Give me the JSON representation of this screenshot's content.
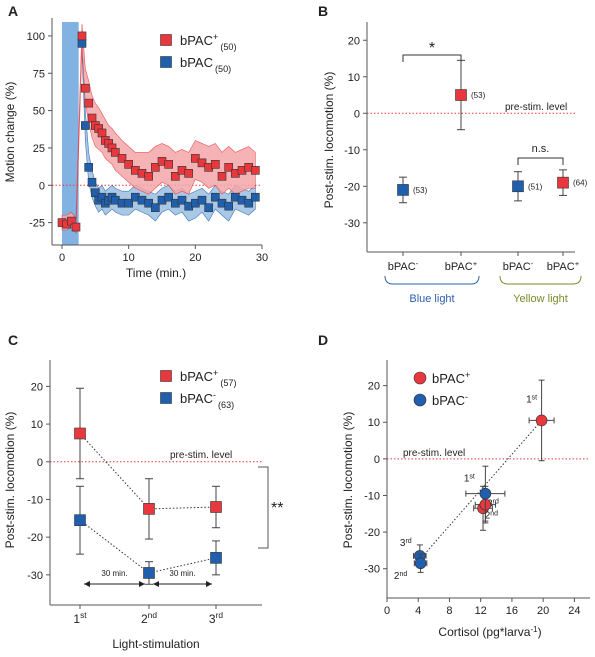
{
  "colors": {
    "red": "#e8383d",
    "red_fill": "#f4a6a9",
    "blue": "#1f5fae",
    "blue_fill": "#9bbfe2",
    "stim_blue": "#7aaee0",
    "dotted": "#e8383d"
  },
  "chart_data": [
    {
      "id": "A",
      "panel_label": "A",
      "type": "line",
      "xlabel": "Time (min.)",
      "ylabel": "Motion change (%)",
      "xlim": [
        -1.5,
        30
      ],
      "ylim": [
        -40,
        112
      ],
      "xticks": [
        0,
        10,
        20,
        30
      ],
      "yticks": [
        -25,
        0,
        25,
        50,
        75,
        100
      ],
      "stim_band": [
        0,
        2.5
      ],
      "legend": [
        {
          "label_main": "bPAC",
          "sup": "+",
          "n": "(50)"
        },
        {
          "label_main": "bPAC",
          "sup": "",
          "n": "(50)"
        }
      ],
      "series": [
        {
          "name": "bPAC+",
          "x": [
            0,
            0.7,
            1.4,
            2.1,
            3.0,
            3.5,
            4.0,
            4.5,
            5.0,
            5.5,
            6.0,
            6.5,
            7.0,
            7.5,
            8.0,
            9.0,
            10.0,
            11.0,
            12.0,
            13.0,
            14.0,
            15.0,
            16.0,
            17.0,
            18.0,
            19.0,
            20.0,
            21.0,
            22.0,
            23.0,
            24.0,
            25.0,
            26.0,
            27.0,
            28.0,
            29.0
          ],
          "values": [
            -25,
            -26,
            -24,
            -28,
            100,
            65,
            55,
            45,
            40,
            38,
            35,
            30,
            28,
            25,
            22,
            18,
            14,
            10,
            8,
            6,
            12,
            16,
            14,
            6,
            10,
            8,
            18,
            15,
            12,
            14,
            6,
            12,
            8,
            10,
            12,
            10
          ],
          "band_upper": [
            -20,
            -20,
            -18,
            -22,
            108,
            78,
            70,
            60,
            55,
            52,
            48,
            44,
            40,
            38,
            35,
            30,
            26,
            22,
            22,
            22,
            26,
            28,
            26,
            22,
            24,
            22,
            30,
            28,
            26,
            28,
            22,
            26,
            22,
            24,
            26,
            22
          ],
          "band_lower": [
            -30,
            -30,
            -28,
            -32,
            92,
            55,
            42,
            32,
            26,
            24,
            22,
            18,
            16,
            14,
            10,
            6,
            2,
            -2,
            -4,
            -6,
            -2,
            2,
            0,
            -6,
            -4,
            -6,
            4,
            2,
            -2,
            0,
            -6,
            -2,
            -6,
            -4,
            -2,
            -2
          ]
        },
        {
          "name": "bPAC-",
          "x": [
            3.0,
            3.5,
            4.0,
            4.5,
            5.0,
            5.5,
            6.0,
            6.5,
            7.0,
            7.5,
            8.0,
            9.0,
            10.0,
            11.0,
            12.0,
            13.0,
            14.0,
            15.0,
            16.0,
            17.0,
            18.0,
            19.0,
            20.0,
            21.0,
            22.0,
            23.0,
            24.0,
            25.0,
            26.0,
            27.0,
            28.0,
            29.0
          ],
          "values": [
            95,
            40,
            12,
            2,
            -5,
            -10,
            -8,
            -12,
            -10,
            -8,
            -10,
            -12,
            -12,
            -8,
            -10,
            -12,
            -15,
            -10,
            -8,
            -12,
            -10,
            -14,
            -12,
            -10,
            -15,
            -8,
            -12,
            -14,
            -8,
            -10,
            -12,
            -8
          ],
          "band_upper": [
            102,
            50,
            22,
            10,
            2,
            -2,
            0,
            -4,
            -2,
            0,
            -2,
            -4,
            -4,
            0,
            -2,
            -4,
            -6,
            -2,
            0,
            -4,
            -2,
            -6,
            -4,
            -2,
            -6,
            0,
            -4,
            -6,
            0,
            -2,
            -4,
            0
          ],
          "band_lower": [
            88,
            30,
            2,
            -8,
            -14,
            -18,
            -16,
            -20,
            -18,
            -16,
            -18,
            -20,
            -20,
            -16,
            -18,
            -20,
            -24,
            -18,
            -16,
            -20,
            -18,
            -24,
            -22,
            -18,
            -24,
            -16,
            -20,
            -24,
            -16,
            -18,
            -20,
            -16
          ]
        }
      ]
    },
    {
      "id": "B",
      "panel_label": "B",
      "type": "scatter",
      "ylabel": "Post-stim. locomotion (%)",
      "ylim": [
        -38,
        25
      ],
      "yticks": [
        -30,
        -20,
        -10,
        0,
        10,
        20
      ],
      "reference_label": "pre-stim. level",
      "points": [
        {
          "group": "Blue light",
          "name": "bPAC-",
          "value": -21,
          "err": 3.5,
          "n": "(53)",
          "color": "blue"
        },
        {
          "group": "Blue light",
          "name": "bPAC+",
          "value": 5,
          "err": 9.5,
          "n": "(53)",
          "color": "red"
        },
        {
          "group": "Yellow light",
          "name": "bPAC-",
          "value": -20,
          "err": 4,
          "n": "(51)",
          "color": "blue"
        },
        {
          "group": "Yellow light",
          "name": "bPAC+",
          "value": -19,
          "err": 3.5,
          "n": "(64)",
          "color": "red"
        }
      ],
      "tick_labels": [
        {
          "main": "bPAC",
          "sup": "-"
        },
        {
          "main": "bPAC",
          "sup": "+"
        },
        {
          "main": "bPAC",
          "sup": "-"
        },
        {
          "main": "bPAC",
          "sup": "+"
        }
      ],
      "groups": [
        {
          "label": "Blue light",
          "color": "#2e5fae"
        },
        {
          "label": "Yellow light",
          "color": "#7c8a2a"
        }
      ],
      "annotations": {
        "sig_blue": "*",
        "sig_yellow": "n.s."
      }
    },
    {
      "id": "C",
      "panel_label": "C",
      "type": "line",
      "xlabel": "Light-stimulation",
      "ylabel": "Post-stim. locomotion (%)",
      "ylim": [
        -38,
        27
      ],
      "yticks": [
        -30,
        -20,
        -10,
        0,
        10,
        20
      ],
      "categories": [
        {
          "main": "1",
          "sup": "st"
        },
        {
          "main": "2",
          "sup": "nd"
        },
        {
          "main": "3",
          "sup": "rd"
        }
      ],
      "reference_label": "pre-stim. level",
      "interval_label": "30 min.",
      "legend": [
        {
          "label_main": "bPAC",
          "sup": "+",
          "n": "(57)"
        },
        {
          "label_main": "bPAC",
          "sup": "-",
          "n": "(63)"
        }
      ],
      "series": [
        {
          "name": "bPAC+",
          "values": [
            7.5,
            -12.5,
            -12
          ],
          "err": [
            12,
            8,
            5.5
          ],
          "color": "red"
        },
        {
          "name": "bPAC-",
          "values": [
            -15.5,
            -29.5,
            -25.5
          ],
          "err": [
            9,
            3,
            4.5
          ],
          "color": "blue"
        }
      ],
      "significance": "**"
    },
    {
      "id": "D",
      "panel_label": "D",
      "type": "scatter",
      "xlabel": "Cortisol (pg*larva",
      "xlabel_sup": "-1",
      "xlabel_end": ")",
      "ylabel": "Post-stim. locomotion (%)",
      "xlim": [
        0,
        26
      ],
      "ylim": [
        -38,
        27
      ],
      "xticks": [
        0,
        4,
        8,
        12,
        16,
        20,
        24
      ],
      "yticks": [
        -30,
        -20,
        -10,
        0,
        10,
        20
      ],
      "reference_label": "pre-stim. level",
      "legend": [
        {
          "label_main": "bPAC",
          "sup": "+"
        },
        {
          "label_main": "bPAC",
          "sup": "-"
        }
      ],
      "points": [
        {
          "name": "bPAC+",
          "x": 19.8,
          "y": 10.5,
          "xerr": 1.6,
          "yerr": 11,
          "label_main": "1",
          "label_sup": "st",
          "color": "red"
        },
        {
          "name": "bPAC+",
          "x": 12.3,
          "y": -13.5,
          "xerr": 1.2,
          "yerr": 6,
          "label_main": "3",
          "label_sup": "rd",
          "color": "red"
        },
        {
          "name": "bPAC+",
          "x": 12.6,
          "y": -12.5,
          "xerr": 1.3,
          "yerr": 5,
          "label_main": "2",
          "label_sup": "nd",
          "color": "red"
        },
        {
          "name": "bPAC-",
          "x": 12.6,
          "y": -9.5,
          "xerr": 2.5,
          "yerr": 7.5,
          "label_main": "1",
          "label_sup": "st",
          "color": "blue"
        },
        {
          "name": "bPAC-",
          "x": 4.2,
          "y": -26.5,
          "xerr": 0.8,
          "yerr": 3,
          "label_main": "3",
          "label_sup": "rd",
          "color": "blue"
        },
        {
          "name": "bPAC-",
          "x": 4.3,
          "y": -28.5,
          "xerr": 0.8,
          "yerr": 2.5,
          "label_main": "2",
          "label_sup": "nd",
          "color": "blue"
        }
      ]
    }
  ]
}
